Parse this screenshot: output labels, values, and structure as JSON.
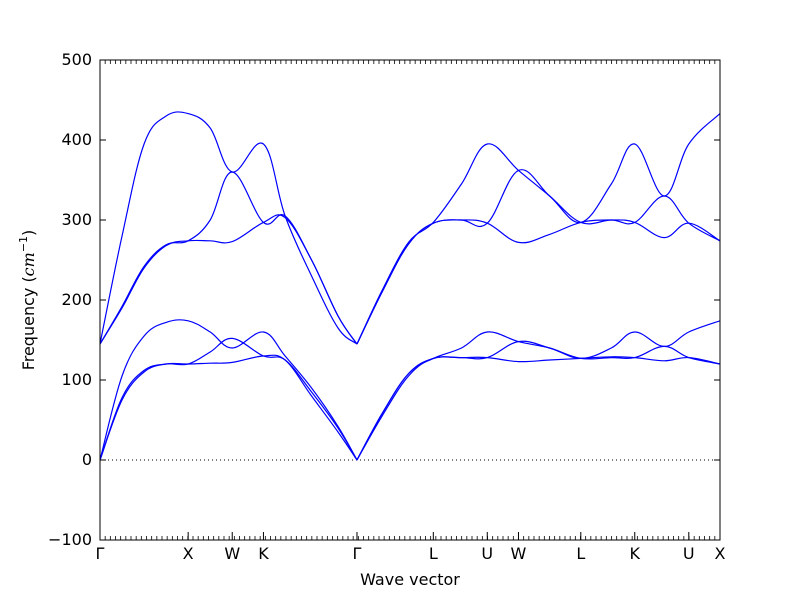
{
  "chart_data": {
    "type": "line",
    "title": "",
    "xlabel": "Wave vector",
    "ylabel": {
      "prefix": "Frequency (",
      "unit": "cm",
      "exponent": "−1",
      "suffix": ")"
    },
    "ylim": [
      -100,
      500
    ],
    "yticks": [
      -100,
      0,
      100,
      200,
      300,
      400,
      500
    ],
    "x_high_symmetry_points": [
      {
        "label": "Γ",
        "x": 0.0
      },
      {
        "label": "X",
        "x": 1.0
      },
      {
        "label": "W",
        "x": 1.5
      },
      {
        "label": "K",
        "x": 1.854
      },
      {
        "label": "Γ",
        "x": 2.915
      },
      {
        "label": "L",
        "x": 3.781
      },
      {
        "label": "U",
        "x": 4.393
      },
      {
        "label": "W",
        "x": 4.747
      },
      {
        "label": "L",
        "x": 5.454
      },
      {
        "label": "K",
        "x": 6.066
      },
      {
        "label": "U",
        "x": 6.679
      },
      {
        "label": "X",
        "x": 7.033
      }
    ],
    "xlim": [
      0,
      7.033
    ],
    "zero_line": true,
    "line_color": "#0000ff",
    "zero_line_color": "#000000",
    "bands": [
      {
        "x": [
          0,
          0.25,
          0.5,
          0.75,
          1.0,
          1.25,
          1.5,
          1.854,
          2.1,
          2.4,
          2.7,
          2.915
        ],
        "y": [
          0,
          75,
          110,
          120,
          120,
          121,
          122,
          130,
          125,
          80,
          35,
          0
        ]
      },
      {
        "x": [
          0,
          0.25,
          0.5,
          0.75,
          1.0,
          1.25,
          1.5,
          1.854,
          2.1,
          2.4,
          2.7,
          2.915
        ],
        "y": [
          0,
          78,
          112,
          120,
          120,
          135,
          152,
          130,
          125,
          85,
          40,
          0
        ]
      },
      {
        "x": [
          0,
          0.25,
          0.5,
          0.75,
          1.0,
          1.25,
          1.5,
          1.854,
          2.1,
          2.4,
          2.7,
          2.915
        ],
        "y": [
          0,
          105,
          155,
          172,
          174,
          160,
          140,
          160,
          130,
          90,
          42,
          0
        ]
      },
      {
        "x": [
          0,
          0.25,
          0.5,
          0.75,
          1.0,
          1.25,
          1.5,
          1.854,
          2.1,
          2.4,
          2.7,
          2.915
        ],
        "y": [
          145,
          190,
          240,
          268,
          274,
          274,
          273,
          297,
          303,
          250,
          180,
          145
        ]
      },
      {
        "x": [
          0,
          0.25,
          0.5,
          0.75,
          1.0,
          1.25,
          1.5,
          1.854,
          2.1,
          2.4,
          2.7,
          2.915
        ],
        "y": [
          145,
          192,
          242,
          269,
          274,
          300,
          360,
          297,
          305,
          250,
          180,
          145
        ]
      },
      {
        "x": [
          0,
          0.25,
          0.5,
          0.75,
          1.0,
          1.25,
          1.5,
          1.854,
          2.1,
          2.4,
          2.7,
          2.915
        ],
        "y": [
          145,
          280,
          395,
          430,
          433,
          415,
          360,
          395,
          305,
          230,
          165,
          145
        ]
      },
      {
        "x": [
          2.915,
          3.2,
          3.5,
          3.781,
          4.1,
          4.393,
          4.747,
          5.1,
          5.454,
          5.8,
          6.066,
          6.4,
          6.679,
          7.033
        ],
        "y": [
          0,
          55,
          105,
          127,
          128,
          128,
          123,
          125,
          127,
          129,
          128,
          124,
          128,
          120
        ]
      },
      {
        "x": [
          2.915,
          3.2,
          3.5,
          3.781,
          4.1,
          4.393,
          4.747,
          5.1,
          5.454,
          5.8,
          6.066,
          6.4,
          6.679,
          7.033
        ],
        "y": [
          0,
          58,
          108,
          127,
          128,
          128,
          148,
          140,
          127,
          128,
          128,
          142,
          128,
          120
        ]
      },
      {
        "x": [
          2.915,
          3.2,
          3.5,
          3.781,
          4.1,
          4.393,
          4.747,
          5.1,
          5.454,
          5.8,
          6.066,
          6.4,
          6.679,
          7.033
        ],
        "y": [
          0,
          58,
          108,
          127,
          140,
          160,
          148,
          140,
          127,
          140,
          160,
          142,
          160,
          174
        ]
      },
      {
        "x": [
          2.915,
          3.2,
          3.5,
          3.781,
          4.1,
          4.393,
          4.747,
          5.1,
          5.454,
          5.8,
          6.066,
          6.4,
          6.679,
          7.033
        ],
        "y": [
          145,
          210,
          270,
          296,
          300,
          296,
          272,
          282,
          297,
          300,
          297,
          278,
          296,
          274
        ]
      },
      {
        "x": [
          2.915,
          3.2,
          3.5,
          3.781,
          4.1,
          4.393,
          4.747,
          5.1,
          5.454,
          5.8,
          6.066,
          6.4,
          6.679,
          7.033
        ],
        "y": [
          145,
          210,
          270,
          296,
          300,
          296,
          362,
          330,
          297,
          300,
          297,
          330,
          296,
          274
        ]
      },
      {
        "x": [
          2.915,
          3.2,
          3.5,
          3.781,
          4.1,
          4.393,
          4.747,
          5.1,
          5.454,
          5.8,
          6.066,
          6.4,
          6.679,
          7.033
        ],
        "y": [
          145,
          212,
          272,
          297,
          345,
          395,
          362,
          330,
          297,
          345,
          395,
          330,
          395,
          433
        ]
      }
    ]
  }
}
